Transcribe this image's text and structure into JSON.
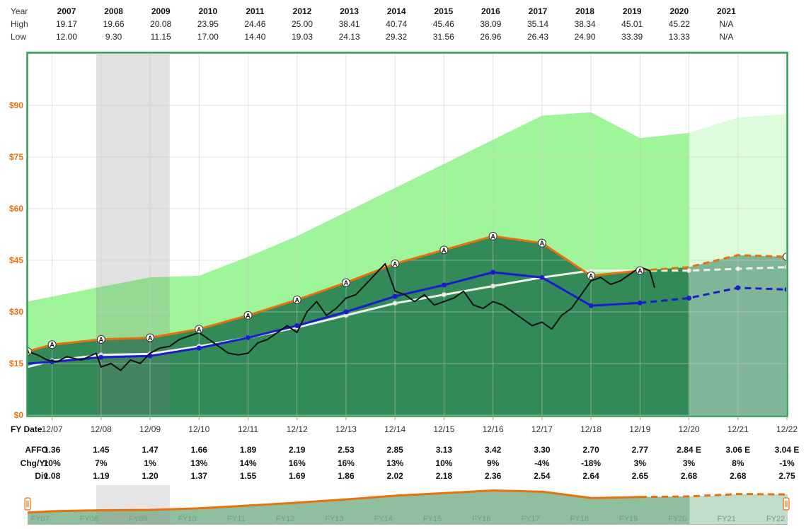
{
  "header": {
    "row_labels": {
      "year": "Year",
      "high": "High",
      "low": "Low"
    },
    "years": [
      "2007",
      "2008",
      "2009",
      "2010",
      "2011",
      "2012",
      "2013",
      "2014",
      "2015",
      "2016",
      "2017",
      "2018",
      "2019",
      "2020",
      "2021"
    ],
    "high": [
      "19.17",
      "19.66",
      "20.08",
      "23.95",
      "24.46",
      "25.00",
      "38.41",
      "40.74",
      "45.46",
      "38.09",
      "35.14",
      "38.34",
      "45.01",
      "45.22",
      "N/A"
    ],
    "low": [
      "12.00",
      "9.30",
      "11.15",
      "17.00",
      "14.40",
      "19.03",
      "24.13",
      "29.32",
      "31.56",
      "26.96",
      "26.43",
      "24.90",
      "33.39",
      "13.33",
      "N/A"
    ]
  },
  "chart_data": {
    "type": "line",
    "x_labels": [
      "12/07",
      "12/08",
      "12/09",
      "12/10",
      "12/11",
      "12/12",
      "12/13",
      "12/14",
      "12/15",
      "12/16",
      "12/17",
      "12/18",
      "12/19",
      "12/20",
      "12/21",
      "12/22"
    ],
    "y_ticks": [
      "$0",
      "$15",
      "$30",
      "$45",
      "$60",
      "$75",
      "$90"
    ],
    "ylim": [
      0,
      105
    ],
    "x_range": [
      "2006.5",
      "2022.0"
    ],
    "shaded_period": [
      "2007.9",
      "2009.4"
    ],
    "estimate_start": "2020.0",
    "markers": {
      "label": "A"
    },
    "colors": {
      "orange": "#e8710a",
      "blue": "#1c1ccc",
      "white_line": "#f2f2ea",
      "price": "#111111",
      "green_dark": "#3a9e66",
      "green_light": "#9ef59a",
      "green_light_future": "#cbfac4",
      "green_dark_future": "#a4c7b2",
      "frame": "#2e9e55"
    },
    "series": [
      {
        "type": "area",
        "x": [
          2006.5,
          2007.9,
          2009.0,
          2010.0,
          2011.0,
          2012.0,
          2013.0,
          2014.0,
          2015.0,
          2016.0,
          2017.0,
          2018.0,
          2019.0,
          2020.0,
          2021.0,
          2022.0
        ],
        "values": [
          33,
          37,
          40,
          40.5,
          46,
          52,
          59,
          66,
          73,
          80,
          87,
          88,
          80.5,
          82,
          86.5,
          87.5
        ]
      },
      {
        "type": "line",
        "x": [
          2006.5,
          2007.0,
          2008.0,
          2009.0,
          2010.0,
          2011.0,
          2012.0,
          2013.0,
          2014.0,
          2015.0,
          2016.0,
          2017.0,
          2018.0,
          2019.0,
          2020.0,
          2021.0,
          2022.0
        ],
        "values": [
          18.5,
          20.5,
          22,
          22.5,
          25,
          29,
          33.5,
          38.5,
          44,
          48,
          52,
          50,
          40.5,
          42,
          43,
          46.5,
          46
        ]
      },
      {
        "type": "line",
        "x": [
          2006.5,
          2007.0,
          2008.0,
          2009.0,
          2010.0,
          2011.0,
          2012.0,
          2013.0,
          2014.0,
          2015.0,
          2016.0,
          2017.0,
          2018.0,
          2019.0,
          2020.0,
          2021.0,
          2022.0
        ],
        "values": [
          15,
          15.5,
          16.8,
          17.2,
          19.5,
          22.5,
          26,
          30,
          34.5,
          37.8,
          41.5,
          40,
          31.8,
          32.6,
          34,
          37,
          36.5
        ]
      },
      {
        "type": "line",
        "x": [
          2006.5,
          2007.0,
          2008.0,
          2009.0,
          2010.0,
          2011.0,
          2012.0,
          2013.0,
          2014.0,
          2015.0,
          2016.0,
          2017.0,
          2018.0,
          2019.0,
          2020.0,
          2021.0,
          2022.0
        ],
        "values": [
          14,
          15.8,
          17.5,
          17.8,
          20,
          22.5,
          25.5,
          29,
          32.5,
          35,
          37.5,
          40,
          42,
          42,
          42,
          42.5,
          43
        ]
      },
      {
        "type": "line",
        "x": [
          2006.5,
          2006.7,
          2006.9,
          2007.1,
          2007.3,
          2007.6,
          2007.9,
          2008.0,
          2008.2,
          2008.4,
          2008.6,
          2008.8,
          2009.0,
          2009.2,
          2009.4,
          2009.6,
          2009.8,
          2010.0,
          2010.2,
          2010.4,
          2010.6,
          2010.8,
          2011.0,
          2011.2,
          2011.4,
          2011.6,
          2011.8,
          2012.0,
          2012.2,
          2012.4,
          2012.6,
          2012.8,
          2013.0,
          2013.2,
          2013.4,
          2013.6,
          2013.8,
          2014.0,
          2014.2,
          2014.4,
          2014.6,
          2014.8,
          2015.0,
          2015.2,
          2015.4,
          2015.6,
          2015.8,
          2016.0,
          2016.2,
          2016.4,
          2016.6,
          2016.8,
          2017.0,
          2017.2,
          2017.4,
          2017.6,
          2017.8,
          2018.0,
          2018.2,
          2018.4,
          2018.6,
          2018.8,
          2019.0,
          2019.2,
          2019.3
        ],
        "values": [
          18.5,
          17.5,
          16,
          15.5,
          17,
          16,
          18,
          14,
          15,
          13,
          16,
          15,
          18,
          19.5,
          20,
          22,
          23,
          24,
          22,
          20,
          18,
          17.5,
          18,
          21,
          22,
          24,
          26,
          24,
          30,
          33,
          29,
          31,
          34,
          35,
          38,
          41,
          44,
          36,
          35,
          33,
          35,
          32,
          33,
          34,
          36,
          32,
          31,
          33,
          32,
          30,
          28,
          26,
          27,
          25,
          29,
          31,
          35,
          39,
          40,
          38,
          39,
          41,
          43,
          42,
          37
        ]
      }
    ]
  },
  "bottom": {
    "row_labels": {
      "fy": "FY Date",
      "affo": "AFFO",
      "chg": "Chg/Yr",
      "div": "Div"
    },
    "affo": [
      "1.36",
      "1.45",
      "1.47",
      "1.66",
      "1.89",
      "2.19",
      "2.53",
      "2.85",
      "3.13",
      "3.42",
      "3.30",
      "2.70",
      "2.77",
      "2.84 E",
      "3.06 E",
      "3.04 E"
    ],
    "chg": [
      "10%",
      "7%",
      "1%",
      "13%",
      "14%",
      "16%",
      "16%",
      "13%",
      "10%",
      "9%",
      "-4%",
      "-18%",
      "3%",
      "3%",
      "8%",
      "-1%"
    ],
    "div": [
      "1.08",
      "1.19",
      "1.20",
      "1.37",
      "1.55",
      "1.69",
      "1.86",
      "2.02",
      "2.18",
      "2.36",
      "2.54",
      "2.64",
      "2.65",
      "2.68",
      "2.68",
      "2.75"
    ]
  },
  "navigator": {
    "labels": [
      "FY07",
      "FY08",
      "FY09",
      "FY10",
      "FY11",
      "FY12",
      "FY13",
      "FY14",
      "FY15",
      "FY16",
      "FY17",
      "FY18",
      "FY19",
      "FY20",
      "FY21",
      "FY22"
    ]
  }
}
